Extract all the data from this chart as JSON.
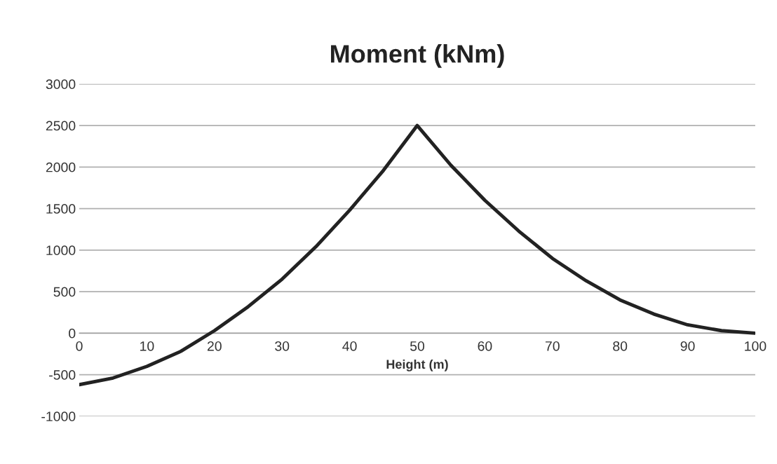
{
  "chart_data": {
    "type": "line",
    "title": "Moment (kNm)",
    "xlabel": "Height (m)",
    "series": [
      {
        "color": "#222222",
        "x": [
          0,
          5,
          10,
          15,
          20,
          25,
          30,
          35,
          40,
          45,
          50,
          55,
          60,
          65,
          70,
          75,
          80,
          85,
          90,
          95,
          100
        ],
        "values": [
          -620,
          -540,
          -400,
          -220,
          30,
          320,
          650,
          1040,
          1480,
          1960,
          2500,
          2020,
          1600,
          1230,
          900,
          630,
          400,
          230,
          100,
          30,
          0
        ]
      }
    ],
    "xlim": [
      0,
      100
    ],
    "xticks": [
      0,
      10,
      20,
      30,
      40,
      50,
      60,
      70,
      80,
      90,
      100
    ],
    "ylim": [
      -1000,
      3000
    ],
    "yticks": [
      -1000,
      -500,
      0,
      500,
      1000,
      1500,
      2000,
      2500,
      3000
    ],
    "grid": "y",
    "marker": "none",
    "line_style": "solid",
    "legend": false
  }
}
